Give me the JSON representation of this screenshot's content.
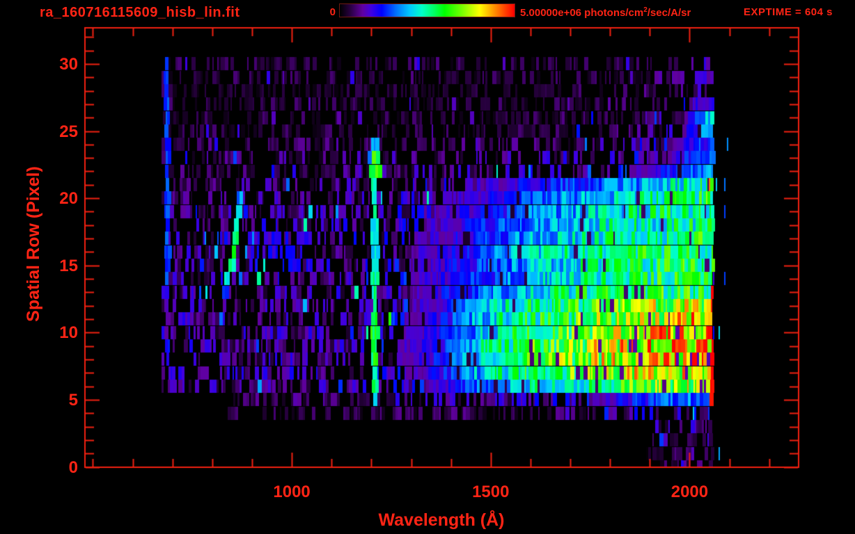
{
  "header": {
    "title": "ra_160716115609_hisb_lin.fit",
    "colorbar": {
      "min_label": "0",
      "max_label_prefix": "5.00000e+06 photons/cm",
      "max_label_sup": "2",
      "max_label_suffix": "/sec/A/sr"
    },
    "exptime_label": "EXPTIME = 604 s"
  },
  "colors": {
    "accent_red": "#ff2415",
    "frame_red": "#f02010",
    "background": "#000000",
    "colorbar_border": "#6e1a12"
  },
  "chart_data": {
    "type": "heatmap",
    "title": "ra_160716115609_hisb_lin.fit",
    "xlabel": "Wavelength (Å)",
    "ylabel": "Spatial Row (Pixel)",
    "xlim": [
      480,
      2274
    ],
    "ylim": [
      0,
      32.7
    ],
    "x_major_ticks": [
      1000,
      1500,
      2000
    ],
    "x_minor_tick_step": 100,
    "y_major_ticks": [
      0,
      5,
      10,
      15,
      20,
      25,
      30
    ],
    "y_minor_tick_step": 1,
    "colorbar": {
      "min": 0,
      "max": 5000000,
      "units": "photons/cm^2/sec/A/sr",
      "colormap": "rainbow"
    },
    "exptime_s": 604,
    "data_extent": {
      "wavelength_max": 2056,
      "row_start_wavelength": [
        {
          "rows": [
            0,
            3
          ],
          "start": 1890
        },
        {
          "rows": [
            4,
            5
          ],
          "start": 838
        },
        {
          "rows": [
            6,
            31
          ],
          "start": 672
        }
      ]
    },
    "grid": {
      "description": "Estimated mean intensity (fraction of 5e6 photons/cm2/sec/A/sr) per spatial row per 50A wavelength bin",
      "wavelength_bin_centers": [
        725,
        775,
        825,
        875,
        925,
        975,
        1025,
        1075,
        1125,
        1175,
        1225,
        1275,
        1325,
        1375,
        1425,
        1475,
        1525,
        1575,
        1625,
        1675,
        1725,
        1775,
        1825,
        1875,
        1925,
        1975,
        2025
      ],
      "row_values": [
        [
          0,
          0,
          0,
          0,
          0,
          0,
          0,
          0,
          0,
          0,
          0,
          0,
          0,
          0,
          0,
          0,
          0,
          0,
          0,
          0,
          0,
          0,
          0,
          0,
          0.04,
          0.05,
          0.06
        ],
        [
          0,
          0,
          0,
          0,
          0,
          0,
          0,
          0,
          0,
          0,
          0,
          0,
          0,
          0,
          0,
          0,
          0,
          0,
          0,
          0,
          0,
          0,
          0,
          0,
          0.05,
          0.06,
          0.07
        ],
        [
          0,
          0,
          0,
          0,
          0,
          0,
          0.01,
          0.01,
          0.01,
          0.01,
          0.01,
          0.01,
          0.01,
          0.01,
          0.01,
          0.01,
          0.01,
          0.01,
          0.01,
          0.01,
          0.01,
          0.01,
          0.02,
          0.02,
          0.06,
          0.07,
          0.08
        ],
        [
          0,
          0,
          0.02,
          0.02,
          0.02,
          0.02,
          0.02,
          0.02,
          0.02,
          0.02,
          0.02,
          0.02,
          0.02,
          0.02,
          0.02,
          0.02,
          0.02,
          0.02,
          0.02,
          0.02,
          0.03,
          0.03,
          0.03,
          0.04,
          0.07,
          0.08,
          0.08
        ],
        [
          0,
          0,
          0.04,
          0.04,
          0.04,
          0.04,
          0.04,
          0.04,
          0.04,
          0.04,
          0.05,
          0.05,
          0.05,
          0.05,
          0.05,
          0.05,
          0.05,
          0.05,
          0.05,
          0.05,
          0.05,
          0.06,
          0.07,
          0.09,
          0.1,
          0.12,
          0.12
        ],
        [
          0,
          0,
          0.06,
          0.06,
          0.06,
          0.06,
          0.06,
          0.06,
          0.06,
          0.07,
          0.07,
          0.07,
          0.08,
          0.08,
          0.08,
          0.08,
          0.09,
          0.09,
          0.1,
          0.1,
          0.12,
          0.15,
          0.2,
          0.25,
          0.28,
          0.3,
          0.33
        ],
        [
          0.08,
          0.08,
          0.08,
          0.08,
          0.08,
          0.08,
          0.08,
          0.08,
          0.08,
          0.09,
          0.1,
          0.11,
          0.13,
          0.18,
          0.25,
          0.32,
          0.38,
          0.42,
          0.45,
          0.48,
          0.5,
          0.52,
          0.55,
          0.6,
          0.62,
          0.65,
          0.7
        ],
        [
          0.09,
          0.09,
          0.09,
          0.09,
          0.09,
          0.09,
          0.09,
          0.09,
          0.09,
          0.1,
          0.11,
          0.13,
          0.16,
          0.22,
          0.3,
          0.4,
          0.48,
          0.52,
          0.55,
          0.58,
          0.62,
          0.65,
          0.68,
          0.72,
          0.75,
          0.78,
          0.8
        ],
        [
          0.09,
          0.09,
          0.09,
          0.09,
          0.09,
          0.09,
          0.09,
          0.09,
          0.09,
          0.1,
          0.11,
          0.14,
          0.17,
          0.24,
          0.32,
          0.42,
          0.5,
          0.54,
          0.58,
          0.62,
          0.65,
          0.7,
          0.73,
          0.77,
          0.8,
          0.83,
          0.85
        ],
        [
          0.09,
          0.09,
          0.09,
          0.09,
          0.09,
          0.09,
          0.09,
          0.09,
          0.09,
          0.1,
          0.11,
          0.14,
          0.17,
          0.24,
          0.32,
          0.42,
          0.5,
          0.54,
          0.58,
          0.62,
          0.65,
          0.7,
          0.73,
          0.77,
          0.8,
          0.83,
          0.85
        ],
        [
          0.09,
          0.09,
          0.09,
          0.09,
          0.09,
          0.09,
          0.09,
          0.09,
          0.09,
          0.1,
          0.11,
          0.13,
          0.16,
          0.23,
          0.31,
          0.4,
          0.48,
          0.52,
          0.56,
          0.6,
          0.63,
          0.67,
          0.7,
          0.74,
          0.78,
          0.8,
          0.82
        ],
        [
          0.09,
          0.09,
          0.09,
          0.09,
          0.09,
          0.09,
          0.09,
          0.09,
          0.09,
          0.1,
          0.11,
          0.13,
          0.16,
          0.22,
          0.3,
          0.38,
          0.46,
          0.5,
          0.54,
          0.57,
          0.6,
          0.63,
          0.66,
          0.7,
          0.73,
          0.76,
          0.78
        ],
        [
          0.08,
          0.08,
          0.08,
          0.08,
          0.08,
          0.08,
          0.08,
          0.08,
          0.08,
          0.09,
          0.1,
          0.12,
          0.15,
          0.2,
          0.28,
          0.35,
          0.42,
          0.48,
          0.52,
          0.55,
          0.58,
          0.6,
          0.62,
          0.65,
          0.68,
          0.7,
          0.72
        ],
        [
          0.08,
          0.08,
          0.08,
          0.09,
          0.09,
          0.09,
          0.09,
          0.09,
          0.09,
          0.09,
          0.1,
          0.12,
          0.15,
          0.2,
          0.25,
          0.3,
          0.35,
          0.4,
          0.45,
          0.48,
          0.5,
          0.52,
          0.53,
          0.55,
          0.55,
          0.55,
          0.58
        ],
        [
          0.08,
          0.08,
          0.09,
          0.1,
          0.1,
          0.1,
          0.1,
          0.1,
          0.1,
          0.1,
          0.11,
          0.12,
          0.15,
          0.18,
          0.22,
          0.26,
          0.3,
          0.35,
          0.4,
          0.42,
          0.45,
          0.47,
          0.5,
          0.52,
          0.53,
          0.55,
          0.55
        ],
        [
          0.08,
          0.08,
          0.09,
          0.1,
          0.1,
          0.1,
          0.1,
          0.1,
          0.1,
          0.1,
          0.11,
          0.12,
          0.15,
          0.18,
          0.22,
          0.26,
          0.3,
          0.35,
          0.4,
          0.42,
          0.45,
          0.47,
          0.5,
          0.52,
          0.53,
          0.55,
          0.55
        ],
        [
          0.08,
          0.08,
          0.09,
          0.1,
          0.1,
          0.1,
          0.1,
          0.1,
          0.1,
          0.1,
          0.11,
          0.12,
          0.15,
          0.18,
          0.22,
          0.26,
          0.32,
          0.38,
          0.42,
          0.44,
          0.46,
          0.48,
          0.5,
          0.52,
          0.53,
          0.55,
          0.55
        ],
        [
          0.08,
          0.08,
          0.09,
          0.1,
          0.1,
          0.1,
          0.1,
          0.1,
          0.1,
          0.1,
          0.11,
          0.12,
          0.14,
          0.17,
          0.21,
          0.25,
          0.3,
          0.34,
          0.38,
          0.41,
          0.44,
          0.46,
          0.48,
          0.5,
          0.52,
          0.53,
          0.54
        ],
        [
          0.08,
          0.08,
          0.09,
          0.09,
          0.09,
          0.09,
          0.09,
          0.09,
          0.09,
          0.1,
          0.1,
          0.11,
          0.13,
          0.16,
          0.2,
          0.23,
          0.27,
          0.31,
          0.35,
          0.38,
          0.4,
          0.43,
          0.45,
          0.47,
          0.49,
          0.5,
          0.5
        ],
        [
          0.07,
          0.07,
          0.08,
          0.08,
          0.08,
          0.08,
          0.08,
          0.08,
          0.08,
          0.09,
          0.09,
          0.1,
          0.12,
          0.15,
          0.18,
          0.2,
          0.24,
          0.28,
          0.32,
          0.35,
          0.38,
          0.42,
          0.45,
          0.48,
          0.5,
          0.52,
          0.52
        ],
        [
          0.07,
          0.07,
          0.07,
          0.08,
          0.08,
          0.08,
          0.08,
          0.08,
          0.08,
          0.08,
          0.09,
          0.1,
          0.11,
          0.13,
          0.15,
          0.18,
          0.21,
          0.25,
          0.28,
          0.32,
          0.35,
          0.38,
          0.42,
          0.45,
          0.48,
          0.52,
          0.55
        ],
        [
          0.06,
          0.06,
          0.06,
          0.07,
          0.07,
          0.07,
          0.07,
          0.07,
          0.07,
          0.08,
          0.08,
          0.09,
          0.1,
          0.11,
          0.13,
          0.15,
          0.17,
          0.2,
          0.22,
          0.25,
          0.28,
          0.3,
          0.33,
          0.36,
          0.4,
          0.45,
          0.5
        ],
        [
          0.06,
          0.06,
          0.06,
          0.06,
          0.06,
          0.06,
          0.06,
          0.07,
          0.07,
          0.07,
          0.07,
          0.07,
          0.08,
          0.08,
          0.08,
          0.09,
          0.09,
          0.09,
          0.1,
          0.1,
          0.1,
          0.1,
          0.12,
          0.15,
          0.2,
          0.25,
          0.35
        ],
        [
          0.06,
          0.06,
          0.06,
          0.06,
          0.06,
          0.06,
          0.06,
          0.06,
          0.06,
          0.07,
          0.07,
          0.07,
          0.07,
          0.07,
          0.07,
          0.08,
          0.08,
          0.08,
          0.08,
          0.09,
          0.09,
          0.09,
          0.1,
          0.12,
          0.15,
          0.2,
          0.3
        ],
        [
          0.05,
          0.05,
          0.05,
          0.05,
          0.05,
          0.05,
          0.05,
          0.05,
          0.05,
          0.05,
          0.05,
          0.05,
          0.05,
          0.05,
          0.06,
          0.06,
          0.06,
          0.06,
          0.06,
          0.06,
          0.06,
          0.07,
          0.08,
          0.1,
          0.12,
          0.15,
          0.25
        ],
        [
          0.04,
          0.04,
          0.04,
          0.04,
          0.04,
          0.04,
          0.04,
          0.04,
          0.04,
          0.04,
          0.04,
          0.04,
          0.04,
          0.04,
          0.04,
          0.04,
          0.04,
          0.05,
          0.05,
          0.05,
          0.05,
          0.05,
          0.06,
          0.07,
          0.1,
          0.12,
          0.3
        ],
        [
          0.04,
          0.04,
          0.04,
          0.04,
          0.04,
          0.04,
          0.04,
          0.04,
          0.04,
          0.04,
          0.04,
          0.04,
          0.04,
          0.04,
          0.04,
          0.04,
          0.04,
          0.04,
          0.04,
          0.05,
          0.05,
          0.05,
          0.05,
          0.06,
          0.08,
          0.1,
          0.35
        ],
        [
          0.04,
          0.04,
          0.04,
          0.04,
          0.04,
          0.04,
          0.04,
          0.04,
          0.04,
          0.04,
          0.04,
          0.04,
          0.04,
          0.04,
          0.04,
          0.04,
          0.04,
          0.04,
          0.04,
          0.04,
          0.04,
          0.05,
          0.05,
          0.05,
          0.07,
          0.09,
          0.2
        ],
        [
          0.03,
          0.03,
          0.03,
          0.03,
          0.03,
          0.03,
          0.03,
          0.03,
          0.03,
          0.03,
          0.03,
          0.03,
          0.03,
          0.03,
          0.03,
          0.03,
          0.03,
          0.03,
          0.03,
          0.03,
          0.04,
          0.04,
          0.04,
          0.05,
          0.08,
          0.1,
          0.12
        ],
        [
          0.04,
          0.04,
          0.04,
          0.04,
          0.04,
          0.04,
          0.04,
          0.04,
          0.04,
          0.04,
          0.04,
          0.04,
          0.04,
          0.04,
          0.04,
          0.04,
          0.04,
          0.04,
          0.04,
          0.04,
          0.04,
          0.04,
          0.04,
          0.04,
          0.06,
          0.08,
          0.15
        ],
        [
          0.04,
          0.04,
          0.04,
          0.04,
          0.04,
          0.04,
          0.04,
          0.04,
          0.04,
          0.04,
          0.04,
          0.04,
          0.04,
          0.04,
          0.04,
          0.04,
          0.04,
          0.04,
          0.04,
          0.04,
          0.04,
          0.04,
          0.04,
          0.04,
          0.05,
          0.06,
          0.1
        ],
        [
          0,
          0,
          0,
          0,
          0,
          0,
          0,
          0,
          0,
          0,
          0,
          0,
          0,
          0,
          0,
          0,
          0,
          0,
          0,
          0,
          0,
          0,
          0,
          0,
          0,
          0,
          0
        ]
      ]
    },
    "features": [
      {
        "type": "vline_profile",
        "name": "detector-left-edge-line",
        "wavelength": 682,
        "half_width_angstrom": 6,
        "profile_row_intensity": [
          [
            5,
            0.1
          ],
          [
            12,
            0.15
          ],
          [
            14,
            0.3
          ],
          [
            30,
            0.28
          ]
        ]
      },
      {
        "type": "arc",
        "name": "emission-arc",
        "half_width_angstrom": 7,
        "points_row_wavelength": [
          [
            12.5,
            827
          ],
          [
            14,
            836
          ],
          [
            16,
            848
          ],
          [
            18,
            858
          ],
          [
            20,
            868
          ],
          [
            20.8,
            873
          ]
        ],
        "profile_row_intensity": [
          [
            12.5,
            0.22
          ],
          [
            14,
            0.45
          ],
          [
            16,
            0.55
          ],
          [
            17.5,
            0.5
          ],
          [
            19,
            0.42
          ],
          [
            20.8,
            0.3
          ]
        ]
      },
      {
        "type": "vline_profile",
        "name": "lyman-alpha-line",
        "wavelength": 1204,
        "half_width_angstrom": 8,
        "profile_row_intensity": [
          [
            4.5,
            0.3
          ],
          [
            6,
            0.52
          ],
          [
            8,
            0.6
          ],
          [
            11,
            0.6
          ],
          [
            13,
            0.52
          ],
          [
            16,
            0.45
          ],
          [
            19,
            0.48
          ],
          [
            21,
            0.55
          ],
          [
            24,
            0.4
          ]
        ]
      },
      {
        "type": "blob",
        "name": "lyman-alpha-bright-blob",
        "row_range": [
          21.3,
          23.8
        ],
        "wavelength_range": [
          1192,
          1218
        ],
        "intensity": 0.64
      },
      {
        "type": "vline",
        "name": "bright-red-cutoff-edge",
        "wavelength": 2052,
        "half_width_angstrom": 4,
        "rows": [
          4.5,
          13
        ],
        "intensity": 1.0
      },
      {
        "type": "specks",
        "name": "cutoff-red-specks",
        "wavelength_range": [
          2049,
          2055
        ],
        "rows": [
          13,
          21.5
        ],
        "density": 0.3,
        "intensity_range": [
          0.8,
          1.0
        ]
      },
      {
        "type": "specks",
        "name": "post-cutoff-specks",
        "wavelength_range": [
          2058,
          2098
        ],
        "rows": [
          0,
          25
        ],
        "density": 0.05,
        "intensity_range": [
          0.15,
          0.5
        ]
      }
    ]
  }
}
